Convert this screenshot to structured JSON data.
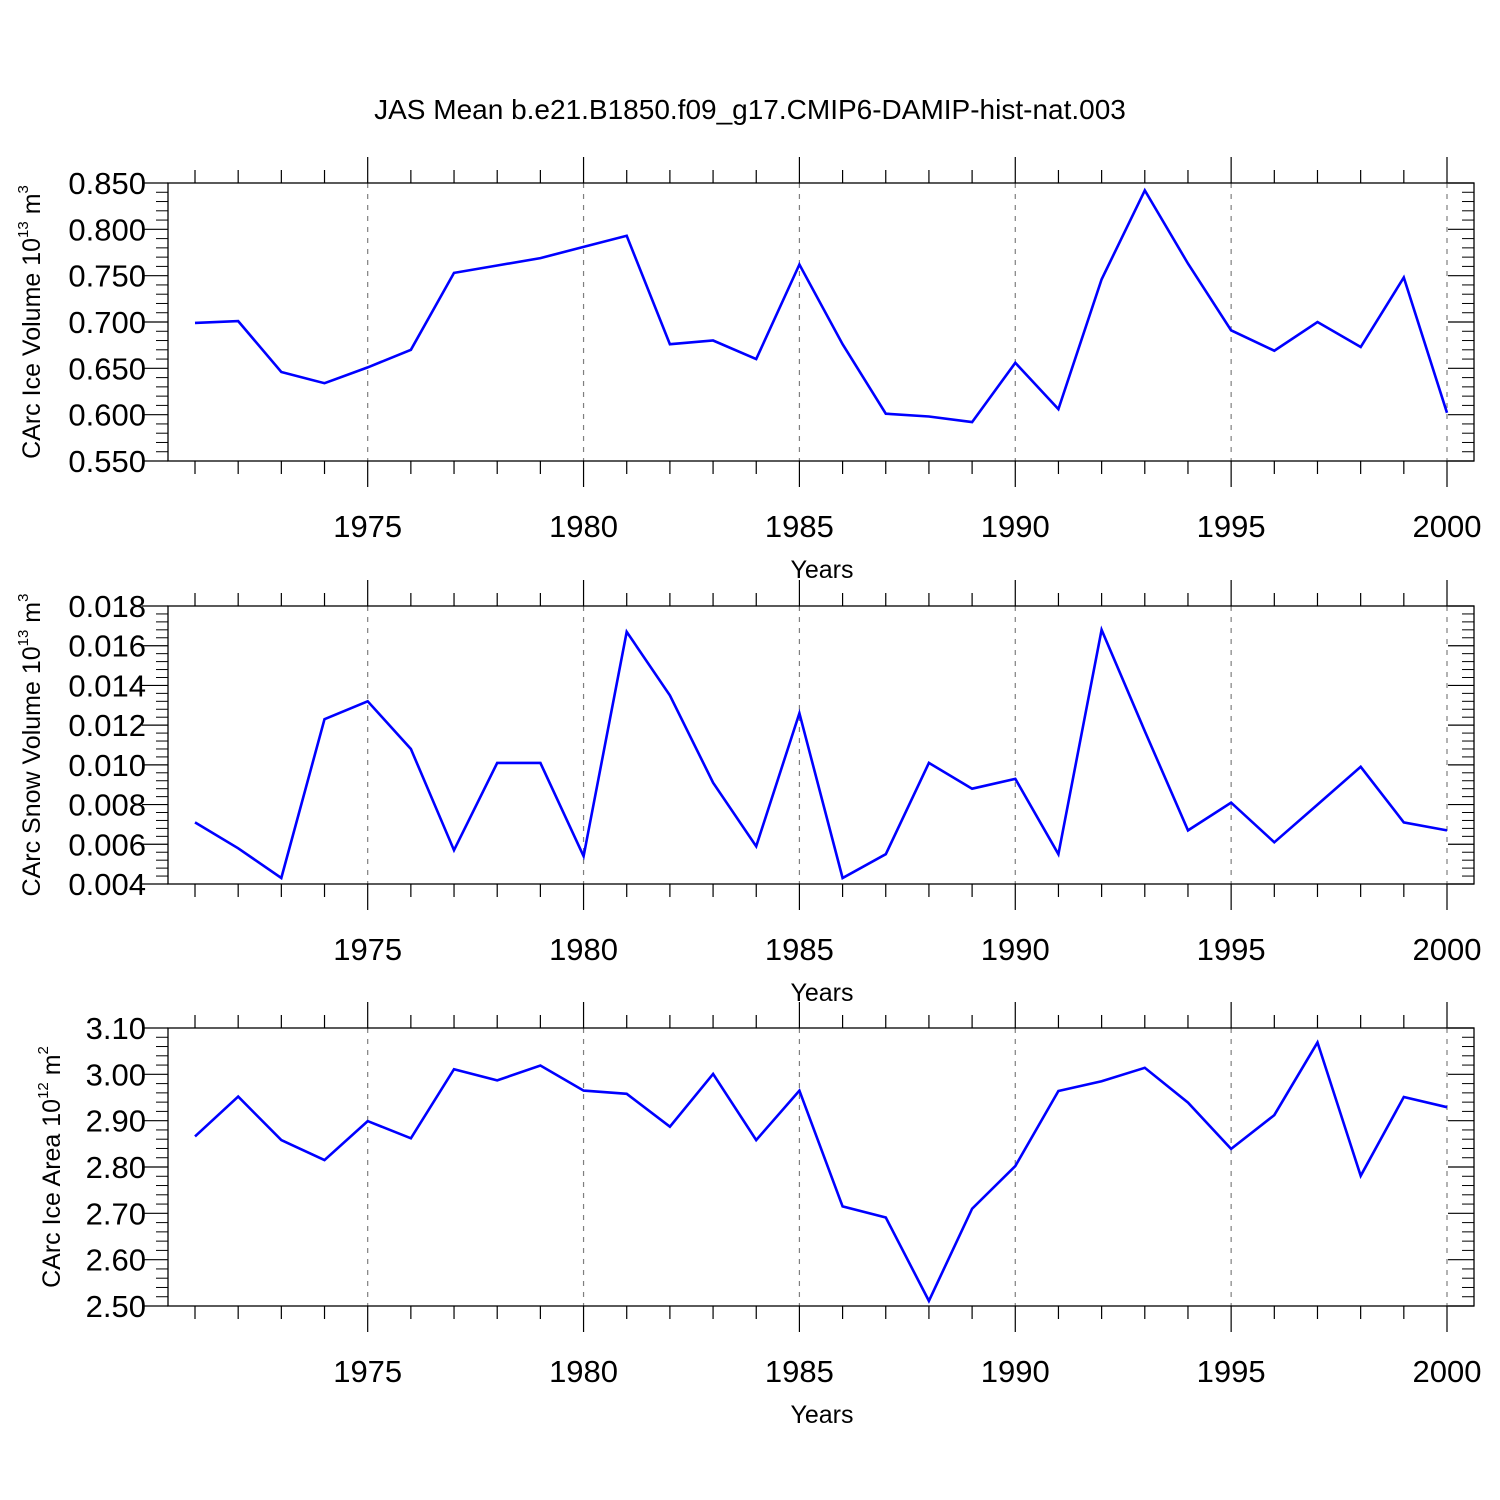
{
  "figure_title": "JAS Mean b.e21.B1850.f09_g17.CMIP6-DAMIP-hist-nat.003",
  "colors": {
    "series": "#0000ff",
    "axis": "#000000",
    "grid": "#7f7f7f",
    "background": "#ffffff"
  },
  "chart_data": [
    {
      "type": "line",
      "ylabel": {
        "prefix": "CArc Ice Volume 10",
        "exponent": "13",
        "unit": "m",
        "unit_exponent": "3"
      },
      "xlabel": "Years",
      "xlim": [
        1971,
        2000
      ],
      "ylim": [
        0.55,
        0.85
      ],
      "yticks": [
        0.55,
        0.6,
        0.65,
        0.7,
        0.75,
        0.8,
        0.85
      ],
      "ytick_labels": [
        "0.550",
        "0.600",
        "0.650",
        "0.700",
        "0.750",
        "0.800",
        "0.850"
      ],
      "xticks": [
        1975,
        1980,
        1985,
        1990,
        1995,
        2000
      ],
      "xtick_labels": [
        "1975",
        "1980",
        "1985",
        "1990",
        "1995",
        "2000"
      ],
      "grid": "vertical dashed lines at labeled years",
      "x": [
        1971,
        1972,
        1973,
        1974,
        1975,
        1976,
        1977,
        1978,
        1979,
        1980,
        1981,
        1982,
        1983,
        1984,
        1985,
        1986,
        1987,
        1988,
        1989,
        1990,
        1991,
        1992,
        1993,
        1994,
        1995,
        1996,
        1997,
        1998,
        1999,
        2000
      ],
      "series": [
        {
          "values": [
            0.699,
            0.701,
            0.646,
            0.634,
            0.651,
            0.67,
            0.753,
            0.761,
            0.769,
            0.781,
            0.793,
            0.676,
            0.68,
            0.66,
            0.762,
            0.676,
            0.601,
            0.598,
            0.592,
            0.656,
            0.606,
            0.746,
            0.842,
            0.763,
            0.691,
            0.669,
            0.7,
            0.673,
            0.748,
            0.602
          ]
        }
      ]
    },
    {
      "type": "line",
      "ylabel": {
        "prefix": "CArc Snow Volume 10",
        "exponent": "13",
        "unit": "m",
        "unit_exponent": "3"
      },
      "xlabel": "Years",
      "xlim": [
        1971,
        2000
      ],
      "ylim": [
        0.004,
        0.018
      ],
      "yticks": [
        0.004,
        0.006,
        0.008,
        0.01,
        0.012,
        0.014,
        0.016,
        0.018
      ],
      "ytick_labels": [
        "0.004",
        "0.006",
        "0.008",
        "0.010",
        "0.012",
        "0.014",
        "0.016",
        "0.018"
      ],
      "xticks": [
        1975,
        1980,
        1985,
        1990,
        1995,
        2000
      ],
      "xtick_labels": [
        "1975",
        "1980",
        "1985",
        "1990",
        "1995",
        "2000"
      ],
      "grid": "vertical dashed lines at labeled years",
      "x": [
        1971,
        1972,
        1973,
        1974,
        1975,
        1976,
        1977,
        1978,
        1979,
        1980,
        1981,
        1982,
        1983,
        1984,
        1985,
        1986,
        1987,
        1988,
        1989,
        1990,
        1991,
        1992,
        1993,
        1994,
        1995,
        1996,
        1997,
        1998,
        1999,
        2000
      ],
      "series": [
        {
          "values": [
            0.0071,
            0.0058,
            0.0043,
            0.0123,
            0.0132,
            0.0108,
            0.0057,
            0.0101,
            0.0101,
            0.0054,
            0.0167,
            0.0135,
            0.0091,
            0.0059,
            0.0126,
            0.0043,
            0.0055,
            0.0101,
            0.0088,
            0.0093,
            0.0055,
            0.0168,
            0.0117,
            0.0067,
            0.0081,
            0.0061,
            0.008,
            0.0099,
            0.0071,
            0.0067
          ]
        }
      ]
    },
    {
      "type": "line",
      "ylabel": {
        "prefix": "CArc Ice Area 10",
        "exponent": "12",
        "unit": "m",
        "unit_exponent": "2"
      },
      "xlabel": "Years",
      "xlim": [
        1971,
        2000
      ],
      "ylim": [
        2.5,
        3.1
      ],
      "yticks": [
        2.5,
        2.6,
        2.7,
        2.8,
        2.9,
        3.0,
        3.1
      ],
      "ytick_labels": [
        "2.50",
        "2.60",
        "2.70",
        "2.80",
        "2.90",
        "3.00",
        "3.10"
      ],
      "xticks": [
        1975,
        1980,
        1985,
        1990,
        1995,
        2000
      ],
      "xtick_labels": [
        "1975",
        "1980",
        "1985",
        "1990",
        "1995",
        "2000"
      ],
      "grid": "vertical dashed lines at labeled years",
      "x": [
        1971,
        1972,
        1973,
        1974,
        1975,
        1976,
        1977,
        1978,
        1979,
        1980,
        1981,
        1982,
        1983,
        1984,
        1985,
        1986,
        1987,
        1988,
        1989,
        1990,
        1991,
        1992,
        1993,
        1994,
        1995,
        1996,
        1997,
        1998,
        1999,
        2000
      ],
      "series": [
        {
          "values": [
            2.866,
            2.952,
            2.858,
            2.815,
            2.899,
            2.862,
            3.011,
            2.987,
            3.019,
            2.965,
            2.958,
            2.887,
            3.001,
            2.858,
            2.965,
            2.715,
            2.691,
            2.511,
            2.71,
            2.802,
            2.964,
            2.985,
            3.014,
            2.939,
            2.839,
            2.912,
            3.069,
            2.781,
            2.951,
            2.929
          ]
        }
      ]
    }
  ]
}
